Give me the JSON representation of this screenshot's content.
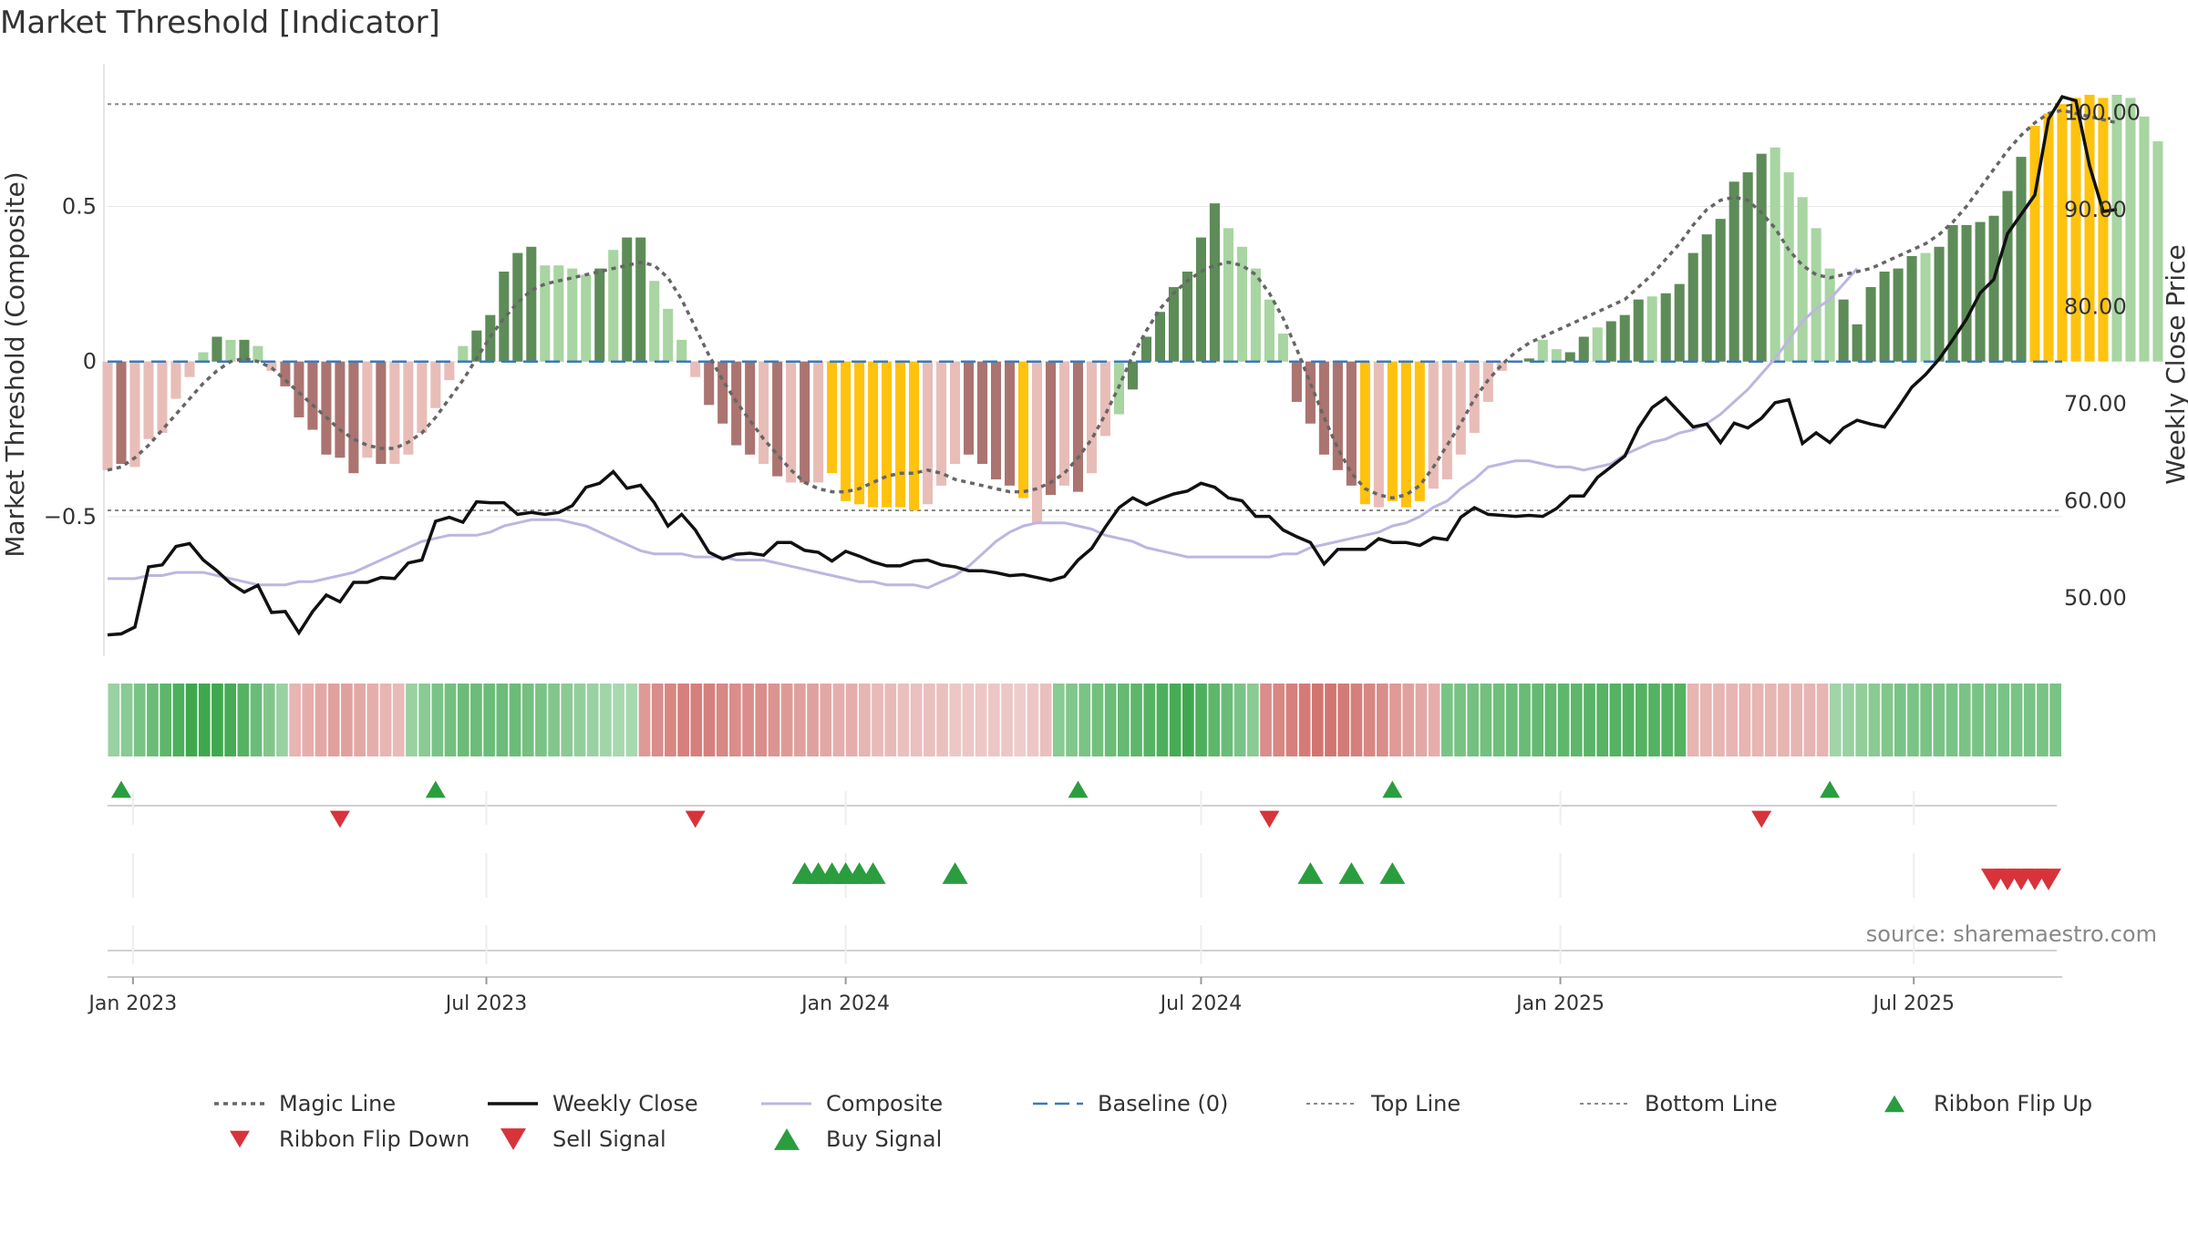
{
  "title": "Market Threshold [Indicator]",
  "y_left_label": "Market Threshold (Composite)",
  "y_right_label": "Weekly Close Price",
  "source": "source: sharemaestro.com",
  "colors": {
    "bar_green_dark": "#5e8c58",
    "bar_green_light": "#a8d5a2",
    "bar_red_dark": "#ab7470",
    "bar_red_light": "#e8bdb8",
    "bar_gold": "#ffc20e",
    "close": "#111111",
    "composite": "#bdb6e0",
    "magic": "#666666",
    "baseline": "#3d7ab5",
    "signal_up": "#2a9d3f",
    "signal_down": "#d8333b",
    "ribbon_green": "#3fa84f",
    "ribbon_red": "#c95a55",
    "grid": "#e8e8e8"
  },
  "chart_data": {
    "type": "bar",
    "x_ticks": [
      "Jan 2023",
      "Jul 2023",
      "Jan 2024",
      "Jul 2024",
      "Jan 2025",
      "Jul 2025"
    ],
    "x_range": [
      "2022-12-19",
      "2025-09-15"
    ],
    "left_axis": {
      "ticks": [
        "0.5",
        "0",
        "−0.5"
      ],
      "tick_values": [
        0.5,
        0,
        -0.5
      ],
      "ylim": [
        -0.95,
        0.96
      ]
    },
    "right_axis": {
      "ticks": [
        "50.00",
        "60.00",
        "70.00",
        "80.00",
        "90.00",
        "100.00"
      ],
      "tick_values": [
        50,
        60,
        70,
        80,
        90,
        100
      ],
      "ylim": [
        44,
        105
      ]
    },
    "top_line": 0.83,
    "bottom_line": -0.48,
    "series": [
      {
        "name": "Composite (bars)",
        "values": [
          -0.35,
          -0.33,
          -0.34,
          -0.25,
          -0.23,
          -0.12,
          -0.05,
          0.03,
          0.08,
          0.07,
          0.07,
          0.05,
          -0.03,
          -0.08,
          -0.18,
          -0.22,
          -0.3,
          -0.31,
          -0.36,
          -0.31,
          -0.33,
          -0.33,
          -0.3,
          -0.23,
          -0.15,
          -0.06,
          0.05,
          0.1,
          0.15,
          0.29,
          0.35,
          0.37,
          0.31,
          0.31,
          0.3,
          0.28,
          0.3,
          0.36,
          0.4,
          0.4,
          0.26,
          0.17,
          0.07,
          -0.05,
          -0.14,
          -0.2,
          -0.27,
          -0.3,
          -0.33,
          -0.37,
          -0.39,
          -0.39,
          -0.39,
          -0.36,
          -0.45,
          -0.46,
          -0.47,
          -0.47,
          -0.47,
          -0.48,
          -0.46,
          -0.4,
          -0.33,
          -0.3,
          -0.33,
          -0.38,
          -0.4,
          -0.44,
          -0.52,
          -0.43,
          -0.4,
          -0.42,
          -0.36,
          -0.24,
          -0.17,
          -0.09,
          0.08,
          0.16,
          0.24,
          0.29,
          0.4,
          0.51,
          0.43,
          0.37,
          0.3,
          0.2,
          0.09,
          -0.13,
          -0.2,
          -0.3,
          -0.35,
          -0.4,
          -0.46,
          -0.47,
          -0.45,
          -0.47,
          -0.45,
          -0.41,
          -0.38,
          -0.3,
          -0.23,
          -0.13,
          -0.03,
          0.0,
          0.01,
          0.07,
          0.04,
          0.03,
          0.08,
          0.11,
          0.13,
          0.15,
          0.2,
          0.21,
          0.22,
          0.25,
          0.35,
          0.41,
          0.46,
          0.58,
          0.61,
          0.67,
          0.69,
          0.61,
          0.53,
          0.43,
          0.3,
          0.2,
          0.12,
          0.24,
          0.29,
          0.3,
          0.34,
          0.35,
          0.37,
          0.44,
          0.44,
          0.45,
          0.47,
          0.55,
          0.66,
          0.76,
          0.8,
          0.83,
          0.85,
          0.86,
          0.85,
          0.86,
          0.85,
          0.79,
          0.71
        ],
        "bar_colors": [
          "rl",
          "rd",
          "rl",
          "rl",
          "rl",
          "rl",
          "rl",
          "gl",
          "gd",
          "gl",
          "gd",
          "gl",
          "rl",
          "rd",
          "rd",
          "rd",
          "rd",
          "rd",
          "rd",
          "rl",
          "rd",
          "rl",
          "rl",
          "rl",
          "rl",
          "rl",
          "gl",
          "gd",
          "gd",
          "gd",
          "gd",
          "gd",
          "gl",
          "gl",
          "gl",
          "gl",
          "gd",
          "gl",
          "gd",
          "gd",
          "gl",
          "gl",
          "gl",
          "rl",
          "rd",
          "rd",
          "rd",
          "rd",
          "rl",
          "rd",
          "rl",
          "rd",
          "rl",
          "y",
          "y",
          "y",
          "y",
          "y",
          "y",
          "y",
          "rl",
          "rl",
          "rl",
          "rd",
          "rd",
          "rd",
          "rd",
          "y",
          "rl",
          "rd",
          "rl",
          "rd",
          "rl",
          "rl",
          "gl",
          "gd",
          "gd",
          "gd",
          "gd",
          "gd",
          "gd",
          "gd",
          "gl",
          "gl",
          "gl",
          "gl",
          "gl",
          "rd",
          "rd",
          "rd",
          "rd",
          "rd",
          "y",
          "rl",
          "y",
          "y",
          "y",
          "rl",
          "rl",
          "rl",
          "rl",
          "rl",
          "rl",
          "gl",
          "gd",
          "gl",
          "gl",
          "gd",
          "gd",
          "gl",
          "gd",
          "gd",
          "gd",
          "gl",
          "gd",
          "gd",
          "gd",
          "gd",
          "gd",
          "gd",
          "gd",
          "gd",
          "gl",
          "gl",
          "gl",
          "gl",
          "gl",
          "gd",
          "gd",
          "gd",
          "gd",
          "gd",
          "gd",
          "gl",
          "gd",
          "gd",
          "gd",
          "gd",
          "gd",
          "gd",
          "gd",
          "y",
          "y",
          "y",
          "y",
          "y",
          "y",
          "gl",
          "gl"
        ]
      },
      {
        "name": "Magic Line",
        "values": [
          -0.35,
          -0.34,
          -0.31,
          -0.27,
          -0.22,
          -0.17,
          -0.12,
          -0.07,
          -0.03,
          0.0,
          0.01,
          0.0,
          -0.02,
          -0.06,
          -0.1,
          -0.14,
          -0.18,
          -0.22,
          -0.25,
          -0.27,
          -0.28,
          -0.28,
          -0.26,
          -0.23,
          -0.18,
          -0.12,
          -0.06,
          0.01,
          0.08,
          0.14,
          0.19,
          0.23,
          0.25,
          0.26,
          0.27,
          0.28,
          0.29,
          0.3,
          0.31,
          0.32,
          0.31,
          0.27,
          0.2,
          0.11,
          0.02,
          -0.06,
          -0.13,
          -0.19,
          -0.25,
          -0.3,
          -0.35,
          -0.39,
          -0.41,
          -0.42,
          -0.42,
          -0.41,
          -0.39,
          -0.37,
          -0.36,
          -0.36,
          -0.35,
          -0.36,
          -0.38,
          -0.39,
          -0.4,
          -0.41,
          -0.42,
          -0.42,
          -0.41,
          -0.39,
          -0.36,
          -0.31,
          -0.25,
          -0.17,
          -0.08,
          0.02,
          0.1,
          0.17,
          0.22,
          0.26,
          0.29,
          0.31,
          0.32,
          0.31,
          0.28,
          0.22,
          0.14,
          0.04,
          -0.07,
          -0.18,
          -0.28,
          -0.36,
          -0.41,
          -0.43,
          -0.44,
          -0.43,
          -0.4,
          -0.34,
          -0.27,
          -0.2,
          -0.12,
          -0.06,
          -0.01,
          0.03,
          0.06,
          0.08,
          0.1,
          0.12,
          0.14,
          0.16,
          0.18,
          0.2,
          0.24,
          0.28,
          0.33,
          0.38,
          0.44,
          0.49,
          0.52,
          0.53,
          0.52,
          0.48,
          0.43,
          0.36,
          0.31,
          0.28,
          0.27,
          0.28,
          0.29,
          0.3,
          0.32,
          0.34,
          0.36,
          0.38,
          0.41,
          0.45,
          0.5,
          0.56,
          0.62,
          0.68,
          0.73,
          0.77,
          0.8,
          0.81,
          0.8,
          0.79,
          0.78,
          0.77
        ]
      },
      {
        "name": "Weekly Close",
        "values": [
          46.2,
          46.3,
          47,
          53.2,
          53.4,
          55.3,
          55.6,
          53.9,
          52.8,
          51.5,
          50.6,
          51.3,
          48.5,
          48.6,
          46.4,
          48.6,
          50.3,
          49.6,
          51.6,
          51.6,
          52.1,
          52,
          53.6,
          53.9,
          57.9,
          58.3,
          57.8,
          59.9,
          59.8,
          59.8,
          58.6,
          58.8,
          58.6,
          58.8,
          59.5,
          61.4,
          61.8,
          63,
          61.3,
          61.6,
          59.8,
          57.4,
          58.6,
          57,
          54.7,
          54,
          54.5,
          54.6,
          54.4,
          55.7,
          55.7,
          54.9,
          54.7,
          53.8,
          54.8,
          54.3,
          53.7,
          53.3,
          53.3,
          53.8,
          53.9,
          53.4,
          53.2,
          52.8,
          52.8,
          52.6,
          52.3,
          52.4,
          52.1,
          51.8,
          52.2,
          53.9,
          55.1,
          57.3,
          59.3,
          60.3,
          59.6,
          60.2,
          60.7,
          61,
          61.8,
          61.4,
          60.3,
          60,
          58.4,
          58.4,
          57,
          56.3,
          55.7,
          53.5,
          55,
          55,
          55,
          56.1,
          55.7,
          55.7,
          55.4,
          56.2,
          56,
          58.3,
          59.3,
          58.6,
          58.5,
          58.4,
          58.5,
          58.4,
          59.2,
          60.5,
          60.5,
          62.4,
          63.5,
          64.6,
          67.5,
          69.6,
          70.6,
          69.1,
          67.6,
          67.9,
          66,
          68,
          67.5,
          68.5,
          70.1,
          70.4,
          65.9,
          67,
          66,
          67.5,
          68.3,
          67.9,
          67.6,
          69.6,
          71.7,
          73,
          74.6,
          76.6,
          78.7,
          81.4,
          82.8,
          87.5,
          89.5,
          91.5,
          99.3,
          101.6,
          101.2,
          94.5,
          89.8,
          90
        ]
      },
      {
        "name": "Composite",
        "values": [
          -0.7,
          -0.7,
          -0.7,
          -0.69,
          -0.69,
          -0.68,
          -0.68,
          -0.68,
          -0.69,
          -0.7,
          -0.71,
          -0.72,
          -0.72,
          -0.72,
          -0.71,
          -0.71,
          -0.7,
          -0.69,
          -0.68,
          -0.66,
          -0.64,
          -0.62,
          -0.6,
          -0.58,
          -0.57,
          -0.56,
          -0.56,
          -0.56,
          -0.55,
          -0.53,
          -0.52,
          -0.51,
          -0.51,
          -0.51,
          -0.52,
          -0.53,
          -0.55,
          -0.57,
          -0.59,
          -0.61,
          -0.62,
          -0.62,
          -0.62,
          -0.63,
          -0.63,
          -0.63,
          -0.64,
          -0.64,
          -0.64,
          -0.65,
          -0.66,
          -0.67,
          -0.68,
          -0.69,
          -0.7,
          -0.71,
          -0.71,
          -0.72,
          -0.72,
          -0.72,
          -0.73,
          -0.71,
          -0.69,
          -0.66,
          -0.62,
          -0.58,
          -0.55,
          -0.53,
          -0.52,
          -0.52,
          -0.52,
          -0.53,
          -0.54,
          -0.56,
          -0.57,
          -0.58,
          -0.6,
          -0.61,
          -0.62,
          -0.63,
          -0.63,
          -0.63,
          -0.63,
          -0.63,
          -0.63,
          -0.63,
          -0.62,
          -0.62,
          -0.6,
          -0.59,
          -0.58,
          -0.57,
          -0.56,
          -0.55,
          -0.53,
          -0.52,
          -0.5,
          -0.47,
          -0.45,
          -0.41,
          -0.38,
          -0.34,
          -0.33,
          -0.32,
          -0.32,
          -0.33,
          -0.34,
          -0.34,
          -0.35,
          -0.34,
          -0.33,
          -0.3,
          -0.28,
          -0.26,
          -0.25,
          -0.23,
          -0.22,
          -0.2,
          -0.17,
          -0.13,
          -0.09,
          -0.04,
          0.01,
          0.07,
          0.13,
          0.17,
          0.2,
          0.25,
          0.3
        ]
      },
      {
        "name": "Ribbon Flip Up",
        "dates": [
          "2022-12-26",
          "2023-06-05",
          "2024-04-29",
          "2024-10-07",
          "2025-05-19"
        ]
      },
      {
        "name": "Ribbon Flip Down",
        "dates": [
          "2023-04-17",
          "2023-10-16",
          "2024-08-05",
          "2025-04-14"
        ]
      },
      {
        "name": "Buy Signal",
        "dates": [
          "2023-12-11",
          "2023-12-18",
          "2023-12-25",
          "2024-01-01",
          "2024-01-08",
          "2024-01-15",
          "2024-02-26",
          "2024-08-26",
          "2024-09-16",
          "2024-10-07"
        ]
      },
      {
        "name": "Sell Signal",
        "dates": [
          "2025-08-11",
          "2025-08-18",
          "2025-08-25",
          "2025-09-01",
          "2025-09-08"
        ]
      }
    ],
    "ribbon": [
      0.4,
      0.5,
      0.6,
      0.7,
      0.8,
      0.9,
      1,
      1,
      1,
      0.95,
      0.85,
      0.7,
      0.55,
      0.4,
      -0.3,
      -0.35,
      -0.4,
      -0.45,
      -0.45,
      -0.4,
      -0.35,
      -0.3,
      -0.25,
      0.4,
      0.5,
      0.6,
      0.65,
      0.7,
      0.7,
      0.7,
      0.7,
      0.7,
      0.65,
      0.6,
      0.55,
      0.5,
      0.45,
      0.4,
      0.35,
      0.3,
      0.3,
      -0.5,
      -0.6,
      -0.65,
      -0.7,
      -0.7,
      -0.7,
      -0.65,
      -0.6,
      -0.6,
      -0.6,
      -0.55,
      -0.5,
      -0.45,
      -0.45,
      -0.4,
      -0.35,
      -0.35,
      -0.3,
      -0.25,
      -0.25,
      -0.2,
      -0.2,
      -0.2,
      -0.2,
      -0.15,
      -0.15,
      -0.15,
      -0.15,
      -0.15,
      -0.1,
      -0.15,
      -0.2,
      0.5,
      0.55,
      0.6,
      0.65,
      0.7,
      0.75,
      0.8,
      0.85,
      0.9,
      0.95,
      1,
      0.9,
      0.8,
      0.7,
      0.6,
      0.5,
      -0.6,
      -0.65,
      -0.7,
      -0.75,
      -0.8,
      -0.8,
      -0.75,
      -0.7,
      -0.65,
      -0.6,
      -0.5,
      -0.45,
      -0.4,
      -0.35,
      0.6,
      0.62,
      0.64,
      0.66,
      0.68,
      0.7,
      0.72,
      0.74,
      0.76,
      0.78,
      0.8,
      0.82,
      0.84,
      0.86,
      0.86,
      0.86,
      0.86,
      0.86,
      0.86,
      -0.3,
      -0.3,
      -0.3,
      -0.3,
      -0.3,
      -0.3,
      -0.3,
      -0.3,
      -0.3,
      -0.3,
      -0.3,
      0.35,
      0.4,
      0.45,
      0.5,
      0.55,
      0.6,
      0.6,
      0.6,
      0.6,
      0.6,
      0.6,
      0.6,
      0.6,
      0.6,
      0.6,
      0.6,
      0.6,
      0.6
    ],
    "legend": [
      {
        "label": "Magic Line",
        "kind": "magic"
      },
      {
        "label": "Weekly Close",
        "kind": "close"
      },
      {
        "label": "Composite",
        "kind": "composite"
      },
      {
        "label": "Baseline (0)",
        "kind": "baseline"
      },
      {
        "label": "Top Line",
        "kind": "topline"
      },
      {
        "label": "Bottom Line",
        "kind": "bottomline"
      },
      {
        "label": "Ribbon Flip Up",
        "kind": "flipup"
      },
      {
        "label": "Ribbon Flip Down",
        "kind": "flipdown"
      },
      {
        "label": "Sell Signal",
        "kind": "sell"
      },
      {
        "label": "Buy Signal",
        "kind": "buy"
      }
    ]
  }
}
